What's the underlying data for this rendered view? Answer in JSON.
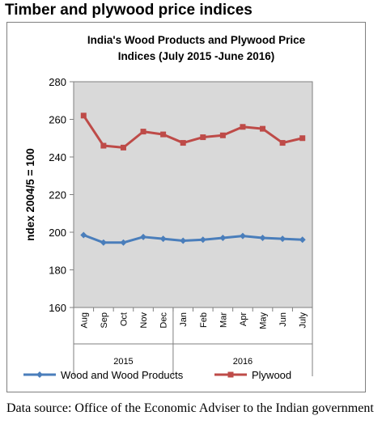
{
  "heading": "Timber and plywood price indices",
  "source_note": "Data source: Office of the Economic Adviser to the Indian government",
  "colors": {
    "wood": "#4a7ebb",
    "plywood": "#be4b48",
    "plot_bg": "#d9d9d9",
    "frame": "#7f7f7f"
  },
  "chart_data": {
    "type": "line",
    "title": "India's Wood Products and Plywood Price Indices (July 2015 -June 2016)",
    "title_lines": [
      "India's Wood Products and Plywood Price",
      "Indices (July 2015 -June 2016)"
    ],
    "ylabel": "ndex 2004/5 = 100",
    "xlabel": "",
    "ylim": [
      160,
      280
    ],
    "yticks": [
      160,
      180,
      200,
      220,
      240,
      260,
      280
    ],
    "categories": [
      "Aug",
      "Sep",
      "Oct",
      "Nov",
      "Dec",
      "Jan",
      "Feb",
      "Mar",
      "Apr",
      "May",
      "Jun",
      "July"
    ],
    "groups": [
      {
        "label": "2015",
        "count": 5
      },
      {
        "label": "2016",
        "count": 7
      }
    ],
    "grid": false,
    "legend_position": "bottom",
    "series": [
      {
        "name": "Wood and Wood Products",
        "color": "#4a7ebb",
        "marker": "diamond",
        "values": [
          198.5,
          194.5,
          194.5,
          197.5,
          196.5,
          195.5,
          196,
          197,
          198,
          197,
          196.5,
          196
        ]
      },
      {
        "name": "Plywood",
        "color": "#be4b48",
        "marker": "square",
        "values": [
          262,
          246,
          245,
          253.5,
          252,
          247.5,
          250.5,
          251.5,
          256,
          255,
          247.5,
          250
        ]
      }
    ]
  }
}
